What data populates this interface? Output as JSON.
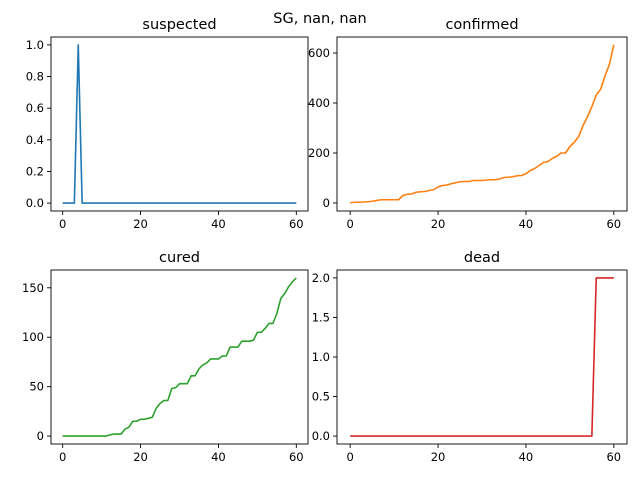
{
  "suptitle": "SG, nan, nan",
  "chart_data": [
    {
      "type": "line",
      "title": "suspected",
      "color": "#1f77b4",
      "xlim": [
        -3,
        63
      ],
      "ylim": [
        -0.05,
        1.05
      ],
      "xticks": [
        0,
        20,
        40,
        60
      ],
      "yticks": [
        0.0,
        0.2,
        0.4,
        0.6,
        0.8,
        1.0
      ],
      "ytick_decimals": 1,
      "x": [
        0,
        1,
        2,
        3,
        4,
        5,
        6,
        7,
        8,
        9,
        10,
        11,
        12,
        13,
        14,
        15,
        16,
        17,
        18,
        19,
        20,
        21,
        22,
        23,
        24,
        25,
        26,
        27,
        28,
        29,
        30,
        31,
        32,
        33,
        34,
        35,
        36,
        37,
        38,
        39,
        40,
        41,
        42,
        43,
        44,
        45,
        46,
        47,
        48,
        49,
        50,
        51,
        52,
        53,
        54,
        55,
        56,
        57,
        58,
        59,
        60
      ],
      "y": [
        0,
        0,
        0,
        0,
        1,
        0,
        0,
        0,
        0,
        0,
        0,
        0,
        0,
        0,
        0,
        0,
        0,
        0,
        0,
        0,
        0,
        0,
        0,
        0,
        0,
        0,
        0,
        0,
        0,
        0,
        0,
        0,
        0,
        0,
        0,
        0,
        0,
        0,
        0,
        0,
        0,
        0,
        0,
        0,
        0,
        0,
        0,
        0,
        0,
        0,
        0,
        0,
        0,
        0,
        0,
        0,
        0,
        0,
        0,
        0,
        0
      ]
    },
    {
      "type": "line",
      "title": "confirmed",
      "color": "#ff7f0e",
      "xlim": [
        -3,
        63
      ],
      "ylim": [
        -32,
        664
      ],
      "xticks": [
        0,
        20,
        40,
        60
      ],
      "yticks": [
        0,
        200,
        400,
        600
      ],
      "ytick_decimals": 0,
      "x": [
        0,
        1,
        2,
        3,
        4,
        5,
        6,
        7,
        8,
        9,
        10,
        11,
        12,
        13,
        14,
        15,
        16,
        17,
        18,
        19,
        20,
        21,
        22,
        23,
        24,
        25,
        26,
        27,
        28,
        29,
        30,
        31,
        32,
        33,
        34,
        35,
        36,
        37,
        38,
        39,
        40,
        41,
        42,
        43,
        44,
        45,
        46,
        47,
        48,
        49,
        50,
        51,
        52,
        53,
        54,
        55,
        56,
        57,
        58,
        59,
        60
      ],
      "y": [
        1,
        3,
        3,
        4,
        5,
        7,
        10,
        13,
        13,
        13,
        13,
        13,
        30,
        35,
        36,
        43,
        45,
        46,
        50,
        53,
        64,
        70,
        72,
        77,
        81,
        85,
        86,
        86,
        90,
        90,
        90,
        92,
        93,
        93,
        96,
        102,
        103,
        105,
        109,
        110,
        117,
        130,
        138,
        150,
        162,
        166,
        178,
        187,
        200,
        200,
        226,
        243,
        266,
        310,
        345,
        385,
        432,
        455,
        508,
        555,
        633
      ]
    },
    {
      "type": "line",
      "title": "cured",
      "color": "#2ca02c",
      "xlim": [
        -3,
        63
      ],
      "ylim": [
        -8,
        168
      ],
      "xticks": [
        0,
        20,
        40,
        60
      ],
      "yticks": [
        0,
        50,
        100,
        150
      ],
      "ytick_decimals": 0,
      "x": [
        0,
        1,
        2,
        3,
        4,
        5,
        6,
        7,
        8,
        9,
        10,
        11,
        12,
        13,
        14,
        15,
        16,
        17,
        18,
        19,
        20,
        21,
        22,
        23,
        24,
        25,
        26,
        27,
        28,
        29,
        30,
        31,
        32,
        33,
        34,
        35,
        36,
        37,
        38,
        39,
        40,
        41,
        42,
        43,
        44,
        45,
        46,
        47,
        48,
        49,
        50,
        51,
        52,
        53,
        54,
        55,
        56,
        57,
        58,
        59,
        60
      ],
      "y": [
        0,
        0,
        0,
        0,
        0,
        0,
        0,
        0,
        0,
        0,
        0,
        0,
        1,
        2,
        2,
        2,
        7,
        9,
        15,
        15,
        17,
        17,
        18,
        19,
        28,
        33,
        36,
        36,
        48,
        49,
        53,
        53,
        53,
        61,
        61,
        68,
        72,
        74,
        78,
        78,
        78,
        81,
        81,
        90,
        90,
        90,
        96,
        96,
        96,
        97,
        105,
        105,
        109,
        114,
        114,
        124,
        139,
        144,
        151,
        156,
        160
      ]
    },
    {
      "type": "line",
      "title": "dead",
      "color": "#d62728",
      "xlim": [
        -3,
        63
      ],
      "ylim": [
        -0.1,
        2.1
      ],
      "xticks": [
        0,
        20,
        40,
        60
      ],
      "yticks": [
        0.0,
        0.5,
        1.0,
        1.5,
        2.0
      ],
      "ytick_decimals": 1,
      "x": [
        0,
        1,
        2,
        3,
        4,
        5,
        6,
        7,
        8,
        9,
        10,
        11,
        12,
        13,
        14,
        15,
        16,
        17,
        18,
        19,
        20,
        21,
        22,
        23,
        24,
        25,
        26,
        27,
        28,
        29,
        30,
        31,
        32,
        33,
        34,
        35,
        36,
        37,
        38,
        39,
        40,
        41,
        42,
        43,
        44,
        45,
        46,
        47,
        48,
        49,
        50,
        51,
        52,
        53,
        54,
        55,
        56,
        57,
        58,
        59,
        60
      ],
      "y": [
        0,
        0,
        0,
        0,
        0,
        0,
        0,
        0,
        0,
        0,
        0,
        0,
        0,
        0,
        0,
        0,
        0,
        0,
        0,
        0,
        0,
        0,
        0,
        0,
        0,
        0,
        0,
        0,
        0,
        0,
        0,
        0,
        0,
        0,
        0,
        0,
        0,
        0,
        0,
        0,
        0,
        0,
        0,
        0,
        0,
        0,
        0,
        0,
        0,
        0,
        0,
        0,
        0,
        0,
        0,
        0,
        2,
        2,
        2,
        2,
        2
      ]
    }
  ]
}
